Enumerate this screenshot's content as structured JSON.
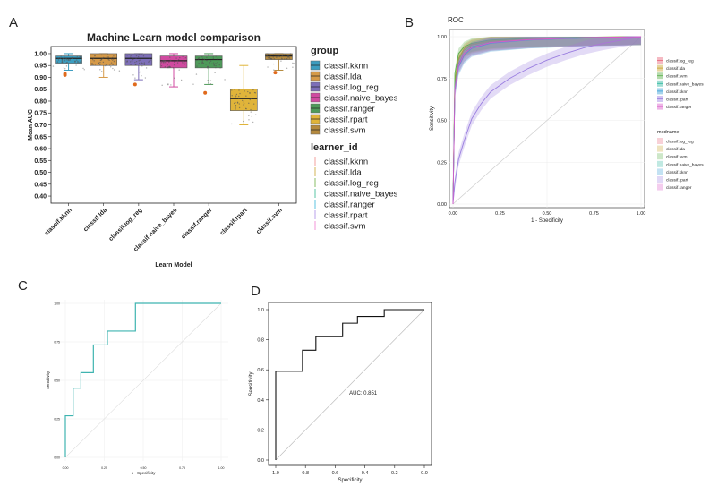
{
  "figure": {
    "panel_labels": [
      "A",
      "B",
      "C",
      "D"
    ]
  },
  "chart_data": [
    {
      "panel": "A",
      "type": "box",
      "title": "Machine Learn model comparison",
      "xlabel": "Learn Model",
      "ylabel": "Mean AUC",
      "ylim": [
        0.37,
        1.03
      ],
      "yticks": [
        "0.40",
        "0.45",
        "0.50",
        "0.55",
        "0.60",
        "0.65",
        "0.70",
        "0.75",
        "0.80",
        "0.85",
        "0.90",
        "0.95",
        "1.00"
      ],
      "categories": [
        "classif.kknn",
        "classif.lda",
        "classif.log_reg",
        "classif.naive_bayes",
        "classif.ranger",
        "classif.rpart",
        "classif.svm"
      ],
      "boxes": [
        {
          "name": "classif.kknn",
          "min": 0.93,
          "q1": 0.96,
          "median": 0.98,
          "q3": 0.99,
          "max": 1.0,
          "outliers": [
            0.91,
            0.915
          ],
          "fill": "#3c9dc0"
        },
        {
          "name": "classif.lda",
          "min": 0.9,
          "q1": 0.95,
          "median": 0.98,
          "q3": 1.0,
          "max": 1.0,
          "outliers": [],
          "fill": "#d69a48"
        },
        {
          "name": "classif.log_reg",
          "min": 0.89,
          "q1": 0.95,
          "median": 0.98,
          "q3": 1.0,
          "max": 1.0,
          "outliers": [
            0.87
          ],
          "fill": "#7d6fb8"
        },
        {
          "name": "classif.naive_bayes",
          "min": 0.86,
          "q1": 0.94,
          "median": 0.97,
          "q3": 0.99,
          "max": 1.0,
          "outliers": [],
          "fill": "#d04aa0"
        },
        {
          "name": "classif.ranger",
          "min": 0.87,
          "q1": 0.94,
          "median": 0.975,
          "q3": 0.99,
          "max": 1.0,
          "outliers": [
            0.835
          ],
          "fill": "#4e9a5a"
        },
        {
          "name": "classif.rpart",
          "min": 0.7,
          "q1": 0.76,
          "median": 0.81,
          "q3": 0.85,
          "max": 0.95,
          "outliers": [],
          "fill": "#e0b43a"
        },
        {
          "name": "classif.svm",
          "min": 0.93,
          "q1": 0.975,
          "median": 0.99,
          "q3": 1.0,
          "max": 1.0,
          "outliers": [
            0.92
          ],
          "fill": "#b58a3e"
        }
      ],
      "legend_group_title": "group",
      "legend_group": [
        "classif.kknn",
        "classif.lda",
        "classif.log_reg",
        "classif.naive_bayes",
        "classif.ranger",
        "classif.rpart",
        "classif.svm"
      ],
      "legend_group_colors": [
        "#3c9dc0",
        "#d69a48",
        "#7d6fb8",
        "#d04aa0",
        "#4e9a5a",
        "#e0b43a",
        "#b58a3e"
      ],
      "legend_learner_title": "learner_id",
      "legend_learner": [
        "classif.kknn",
        "classif.lda",
        "classif.log_reg",
        "classif.naive_bayes",
        "classif.ranger",
        "classif.rpart",
        "classif.svm"
      ],
      "legend_learner_colors": [
        "#f08a84",
        "#c8a12c",
        "#6aae3e",
        "#2fb78e",
        "#33b4d8",
        "#a88be6",
        "#f07ad0"
      ]
    },
    {
      "panel": "B",
      "type": "line",
      "title": "ROC",
      "xlabel": "1 - Specificity",
      "ylabel": "Sensitivity",
      "xlim": [
        0,
        1
      ],
      "ylim": [
        0,
        1
      ],
      "xticks": [
        "0.00",
        "0.25",
        "0.50",
        "0.75",
        "1.00"
      ],
      "yticks": [
        "0.00",
        "0.25",
        "0.50",
        "0.75",
        "1.00"
      ],
      "series": [
        {
          "name": "classif.log_reg",
          "color": "#e8677a",
          "x": [
            0,
            0.01,
            0.03,
            0.06,
            0.1,
            0.2,
            0.4,
            0.7,
            1
          ],
          "y": [
            0,
            0.72,
            0.86,
            0.92,
            0.95,
            0.97,
            0.985,
            0.995,
            1
          ]
        },
        {
          "name": "classif.lda",
          "color": "#c8a12c",
          "x": [
            0,
            0.01,
            0.03,
            0.06,
            0.1,
            0.2,
            0.4,
            0.7,
            1
          ],
          "y": [
            0,
            0.74,
            0.87,
            0.93,
            0.955,
            0.975,
            0.99,
            0.997,
            1
          ]
        },
        {
          "name": "classif.svm",
          "color": "#5ab04a",
          "x": [
            0,
            0.01,
            0.03,
            0.06,
            0.1,
            0.2,
            0.4,
            0.7,
            1
          ],
          "y": [
            0,
            0.78,
            0.9,
            0.94,
            0.96,
            0.98,
            0.99,
            0.997,
            1
          ]
        },
        {
          "name": "classif.naive_bayes",
          "color": "#2fb7a0",
          "x": [
            0,
            0.01,
            0.03,
            0.06,
            0.1,
            0.2,
            0.4,
            0.7,
            1
          ],
          "y": [
            0,
            0.7,
            0.84,
            0.9,
            0.94,
            0.965,
            0.98,
            0.993,
            1
          ]
        },
        {
          "name": "classif.kknn",
          "color": "#39a0d8",
          "x": [
            0,
            0.01,
            0.03,
            0.06,
            0.1,
            0.2,
            0.4,
            0.7,
            1
          ],
          "y": [
            0,
            0.68,
            0.82,
            0.89,
            0.93,
            0.96,
            0.98,
            0.992,
            1
          ]
        },
        {
          "name": "classif.rpart",
          "color": "#9b7fe0",
          "x": [
            0,
            0.01,
            0.03,
            0.06,
            0.1,
            0.15,
            0.2,
            0.3,
            0.4,
            0.5,
            0.6,
            0.7,
            0.8,
            0.9,
            1
          ],
          "y": [
            0,
            0.13,
            0.27,
            0.38,
            0.51,
            0.6,
            0.67,
            0.75,
            0.81,
            0.86,
            0.9,
            0.935,
            0.96,
            0.98,
            1
          ]
        },
        {
          "name": "classif.ranger",
          "color": "#d959c8",
          "x": [
            0,
            0.01,
            0.03,
            0.06,
            0.1,
            0.2,
            0.4,
            0.7,
            1
          ],
          "y": [
            0,
            0.69,
            0.83,
            0.9,
            0.935,
            0.965,
            0.982,
            0.994,
            1
          ]
        }
      ],
      "legend_color": [
        "classif.log_reg",
        "classif.lda",
        "classif.svm",
        "classif.naive_bayes",
        "classif.kknn",
        "classif.rpart",
        "classif.ranger"
      ],
      "legend_fill_title": "modname",
      "legend_fill": [
        "classif.log_reg",
        "classif.lda",
        "classif.svm",
        "classif.naive_bayes",
        "classif.kknn",
        "classif.rpart",
        "classif.ranger"
      ]
    },
    {
      "panel": "C",
      "type": "line",
      "title": "",
      "xlabel": "1 - Specificity",
      "ylabel": "Sensitivity",
      "xlim": [
        0,
        1
      ],
      "ylim": [
        0,
        1
      ],
      "xticks": [
        "0.00",
        "0.25",
        "0.50",
        "0.75",
        "1.00"
      ],
      "yticks": [
        "0.00",
        "0.25",
        "0.50",
        "0.75",
        "1.00"
      ],
      "series": [
        {
          "name": "",
          "color": "#3fb4b0",
          "x": [
            0,
            0,
            0.05,
            0.05,
            0.1,
            0.1,
            0.18,
            0.18,
            0.27,
            0.27,
            0.38,
            0.38,
            0.45,
            0.45,
            1
          ],
          "y": [
            0,
            0.27,
            0.27,
            0.45,
            0.45,
            0.55,
            0.55,
            0.73,
            0.73,
            0.82,
            0.82,
            0.82,
            0.82,
            1,
            1
          ]
        }
      ]
    },
    {
      "panel": "D",
      "type": "line",
      "title": "",
      "xlabel": "Specificity",
      "ylabel": "Sensitivity",
      "xlim": [
        1.0,
        0.0
      ],
      "ylim": [
        0,
        1
      ],
      "xticks": [
        "1.0",
        "0.8",
        "0.6",
        "0.4",
        "0.2",
        "0.0"
      ],
      "yticks": [
        "0.0",
        "0.2",
        "0.4",
        "0.6",
        "0.8",
        "1.0"
      ],
      "annotation": "AUC: 0.851",
      "series": [
        {
          "name": "",
          "color": "#111111",
          "x": [
            1.0,
            1.0,
            0.82,
            0.82,
            0.73,
            0.73,
            0.55,
            0.55,
            0.45,
            0.45,
            0.27,
            0.27,
            0.0
          ],
          "y": [
            0,
            0.59,
            0.59,
            0.73,
            0.73,
            0.82,
            0.82,
            0.91,
            0.91,
            0.955,
            0.955,
            1.0,
            1.0
          ]
        }
      ]
    }
  ]
}
